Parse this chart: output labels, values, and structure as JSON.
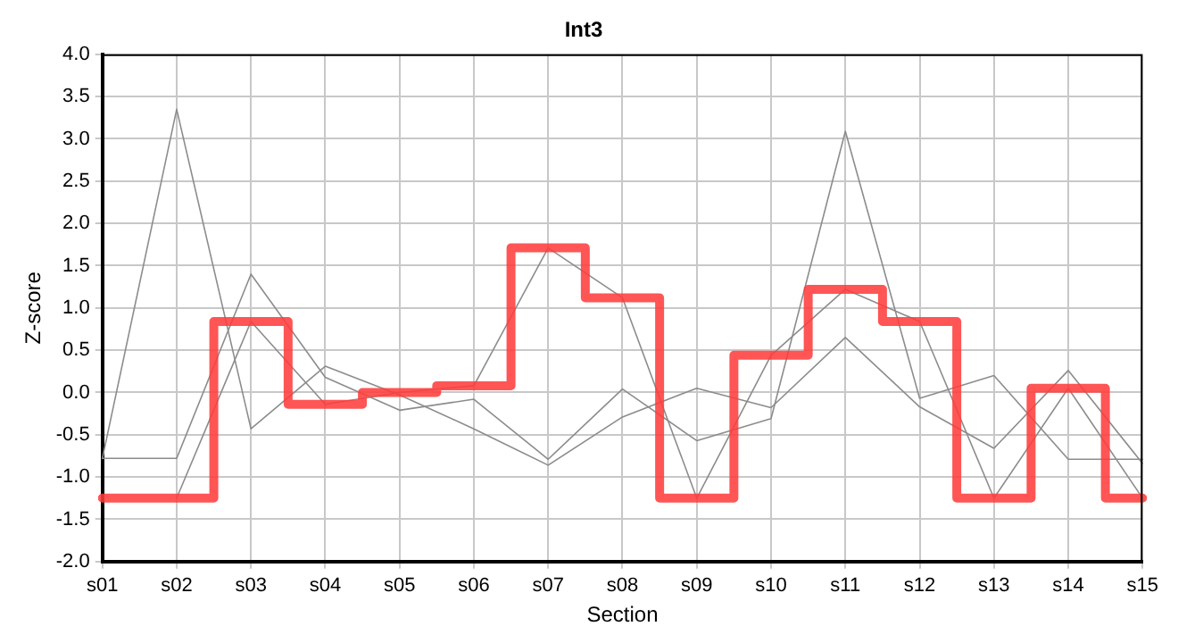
{
  "chart_data": {
    "type": "line",
    "title": "Int3",
    "xlabel": "Section",
    "ylabel": "Z-score",
    "categories": [
      "s01",
      "s02",
      "s03",
      "s04",
      "s05",
      "s06",
      "s07",
      "s08",
      "s09",
      "s10",
      "s11",
      "s12",
      "s13",
      "s14",
      "s15"
    ],
    "series": [
      {
        "color": "#8c8c8c",
        "values": [
          -0.78,
          3.35,
          -0.43,
          0.31,
          -0.03,
          -0.43,
          -0.86,
          -0.29,
          0.05,
          -0.18,
          0.65,
          -0.17,
          -0.66,
          0.26,
          -0.84
        ]
      },
      {
        "color": "#8c8c8c",
        "values": [
          -0.78,
          -0.78,
          1.4,
          0.18,
          -0.21,
          -0.08,
          -0.79,
          0.04,
          -0.57,
          -0.31,
          3.09,
          -0.07,
          0.2,
          -0.79,
          -0.79
        ]
      },
      {
        "color": "#8c8c8c",
        "values": [
          null,
          -1.25,
          0.84,
          -0.14,
          0.0,
          0.08,
          1.71,
          1.12,
          -1.25,
          0.44,
          1.22,
          0.84,
          -1.25,
          0.05,
          -1.25
        ]
      },
      {
        "type": "step",
        "color": "#ff3b3b",
        "values": [
          -1.25,
          -1.25,
          0.84,
          -0.14,
          0.0,
          0.08,
          1.71,
          1.12,
          -1.25,
          0.44,
          1.22,
          0.84,
          -1.25,
          0.05,
          -1.25
        ]
      }
    ],
    "ylim": [
      -2.0,
      4.0
    ],
    "yticks": [
      {
        "value": -2,
        "label": "-2.0"
      },
      {
        "value": -1.5,
        "label": "-1.5"
      },
      {
        "value": -1,
        "label": "-1.0"
      },
      {
        "value": -0.5,
        "label": "-0.5"
      },
      {
        "value": 0,
        "label": "0.0"
      },
      {
        "value": 0.5,
        "label": "0.5"
      },
      {
        "value": 1,
        "label": "1.0"
      },
      {
        "value": 1.5,
        "label": "1.5"
      },
      {
        "value": 2,
        "label": "2.0"
      },
      {
        "value": 2.5,
        "label": "2.5"
      },
      {
        "value": 3,
        "label": "3.0"
      },
      {
        "value": 3.5,
        "label": "3.5"
      },
      {
        "value": 4,
        "label": "4.0"
      }
    ],
    "grid": true,
    "legend": false,
    "marker": "none",
    "line_style": "solid"
  }
}
